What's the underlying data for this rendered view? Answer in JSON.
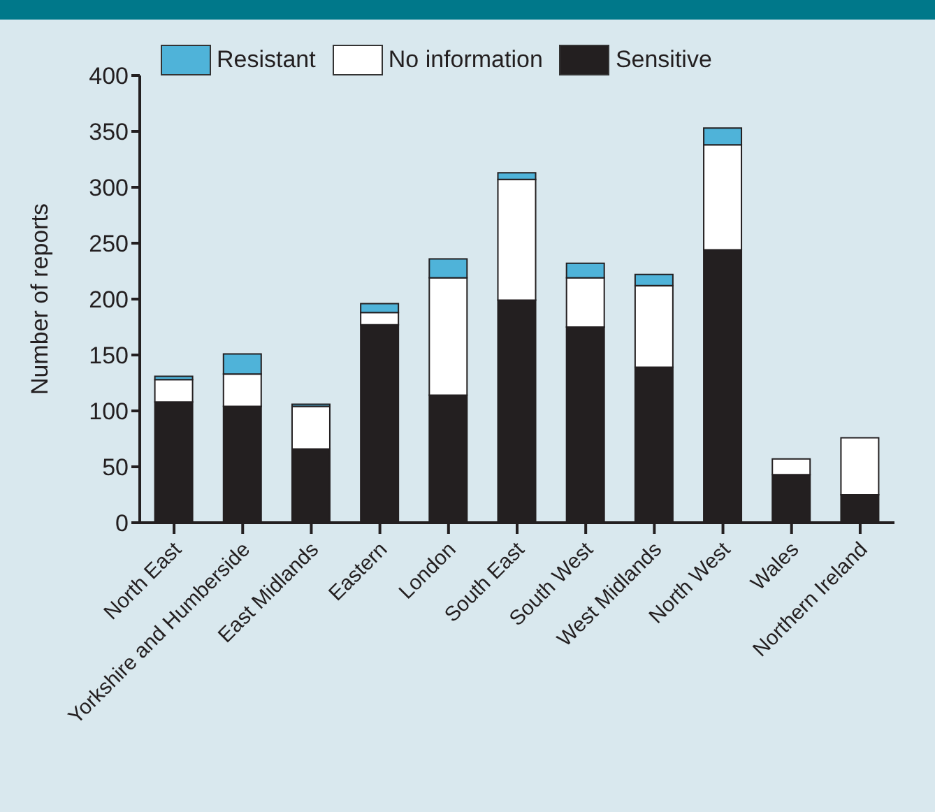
{
  "chart_data": {
    "type": "bar",
    "stacked": true,
    "ylabel": "Number of reports",
    "categories": [
      "North East",
      "Yorkshire and Humberside",
      "East Midlands",
      "Eastern",
      "London",
      "South East",
      "South West",
      "West Midlands",
      "North West",
      "Wales",
      "Northern Ireland"
    ],
    "series": [
      {
        "name": "Sensitive",
        "color": "#231f20",
        "values": [
          108,
          104,
          66,
          177,
          114,
          199,
          175,
          139,
          244,
          43,
          25
        ]
      },
      {
        "name": "No information",
        "color": "#ffffff",
        "values": [
          20,
          29,
          38,
          11,
          105,
          108,
          44,
          73,
          94,
          14,
          51
        ]
      },
      {
        "name": "Resistant",
        "color": "#4fb3d9",
        "values": [
          3,
          18,
          2,
          8,
          17,
          6,
          13,
          10,
          15,
          null,
          0
        ]
      }
    ],
    "ylim": [
      0,
      400
    ],
    "yticks": [
      0,
      50,
      100,
      150,
      200,
      250,
      300,
      350,
      400
    ],
    "grid": false,
    "legend": "top"
  }
}
